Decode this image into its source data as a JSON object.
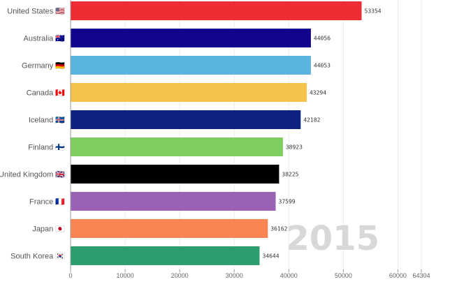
{
  "chart_data": {
    "type": "bar",
    "orientation": "horizontal",
    "year": "2015",
    "categories": [
      "United States",
      "Australia",
      "Germany",
      "Canada",
      "Iceland",
      "Finland",
      "United Kingdom",
      "France",
      "Japan",
      "South Korea"
    ],
    "flags": [
      "🇺🇸",
      "🇦🇺",
      "🇩🇪",
      "🇨🇦",
      "🇮🇸",
      "🇫🇮",
      "🇬🇧",
      "🇫🇷",
      "🇯🇵",
      "🇰🇷"
    ],
    "values": [
      53354,
      44056,
      44053,
      43294,
      42182,
      38923,
      38225,
      37599,
      36162,
      34644
    ],
    "colors": [
      "#ee2c33",
      "#10058c",
      "#5ab4df",
      "#f5c24c",
      "#0e2280",
      "#7fcc5f",
      "#000000",
      "#9b61b5",
      "#f88552",
      "#2c9e6e"
    ],
    "xticks": [
      0,
      10000,
      20000,
      30000,
      40000,
      50000,
      60000,
      64304
    ],
    "xlim": [
      0,
      64304
    ],
    "grid": true,
    "legend": false,
    "title": "",
    "xlabel": "",
    "ylabel": ""
  }
}
